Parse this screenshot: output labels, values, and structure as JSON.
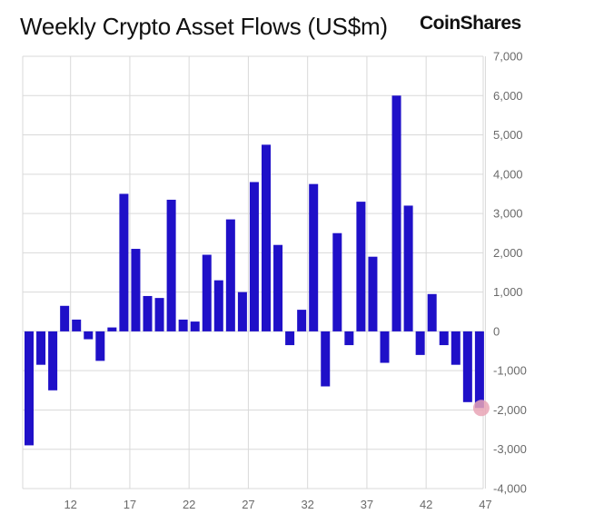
{
  "chart_data": {
    "type": "bar",
    "title": "Weekly Crypto Asset Flows (US$m)",
    "brand": "CoinShares",
    "x_start_week": 8,
    "x_tick_labels": [
      "12",
      "17",
      "22",
      "27",
      "32",
      "37",
      "42",
      "47"
    ],
    "ylim": [
      -4000,
      7000
    ],
    "y_ticks": [
      7000,
      6000,
      5000,
      4000,
      3000,
      2000,
      1000,
      0,
      -1000,
      -2000,
      -3000,
      -4000
    ],
    "y_tick_labels": [
      "7,000",
      "6,000",
      "5,000",
      "4,000",
      "3,000",
      "2,000",
      "1,000",
      "0",
      "-1,000",
      "-2,000",
      "-3,000",
      "-4,000"
    ],
    "values": [
      -2900,
      -850,
      -1500,
      650,
      300,
      -200,
      -750,
      100,
      3500,
      2100,
      900,
      850,
      3350,
      300,
      250,
      1950,
      1300,
      2850,
      1000,
      3800,
      4750,
      2200,
      -350,
      550,
      3750,
      -1400,
      2500,
      -350,
      3300,
      1900,
      -800,
      6000,
      3200,
      -600,
      950,
      -350,
      -850,
      -1800,
      -1950
    ],
    "bar_color": "#1f10c8",
    "highlight_color": "#e9a4b6",
    "highlight_index": 38,
    "grid": true
  }
}
